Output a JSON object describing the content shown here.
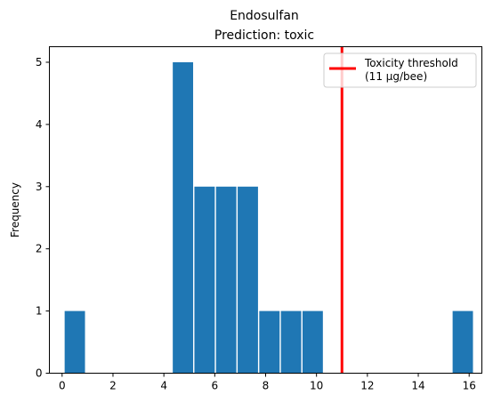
{
  "chart_data": {
    "type": "bar",
    "title": "Endosulfan",
    "subtitle": "Prediction: toxic",
    "xlabel": "",
    "ylabel": "Frequency",
    "xlim": [
      -0.5,
      16.5
    ],
    "ylim": [
      0,
      5.25
    ],
    "x_ticks": [
      0,
      2,
      4,
      6,
      8,
      10,
      12,
      14,
      16
    ],
    "y_ticks": [
      0,
      1,
      2,
      3,
      4,
      5
    ],
    "bar_width": 0.8,
    "bars": [
      {
        "x": 0.5,
        "value": 1
      },
      {
        "x": 4.75,
        "value": 5
      },
      {
        "x": 5.6,
        "value": 3
      },
      {
        "x": 6.45,
        "value": 3
      },
      {
        "x": 7.3,
        "value": 3
      },
      {
        "x": 8.15,
        "value": 1
      },
      {
        "x": 9.0,
        "value": 1
      },
      {
        "x": 9.85,
        "value": 1
      },
      {
        "x": 15.75,
        "value": 1
      }
    ],
    "bar_color": "#1f77b4",
    "threshold": {
      "x": 11,
      "color": "#ff0000"
    },
    "legend": {
      "position": "top-right",
      "line1": "Toxicity threshold",
      "line2": "(11 µg/bee)"
    },
    "grid": false
  }
}
